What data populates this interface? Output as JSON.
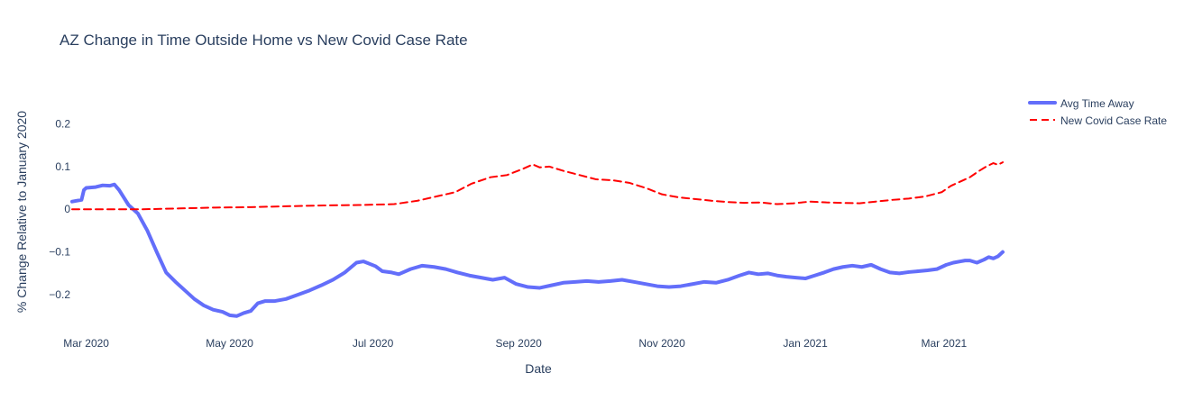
{
  "chart_data": {
    "type": "line",
    "title": "AZ Change in Time Outside Home vs New Covid Case Rate",
    "xlabel": "Date",
    "ylabel": "% Change Relative to January 2020",
    "x_range": [
      "2020-02-24",
      "2021-03-26"
    ],
    "ylim": [
      -0.28,
      0.3
    ],
    "grid": false,
    "legend_position": "top-right",
    "x_ticks": [
      {
        "date": "2020-03-01",
        "label": "Mar 2020"
      },
      {
        "date": "2020-05-01",
        "label": "May 2020"
      },
      {
        "date": "2020-07-01",
        "label": "Jul 2020"
      },
      {
        "date": "2020-09-01",
        "label": "Sep 2020"
      },
      {
        "date": "2020-11-01",
        "label": "Nov 2020"
      },
      {
        "date": "2021-01-01",
        "label": "Jan 2021"
      },
      {
        "date": "2021-03-01",
        "label": "Mar 2021"
      }
    ],
    "y_ticks": [
      {
        "value": 0.2,
        "label": "0.2"
      },
      {
        "value": 0.1,
        "label": "0.1"
      },
      {
        "value": 0,
        "label": "0"
      },
      {
        "value": -0.1,
        "label": "−0.1"
      },
      {
        "value": -0.2,
        "label": "−0.2"
      }
    ],
    "series": [
      {
        "name": "Avg Time Away",
        "color": "#636efa",
        "style": "solid",
        "points": [
          [
            "2020-02-24",
            0.018
          ],
          [
            "2020-02-28",
            0.022
          ],
          [
            "2020-02-29",
            0.045
          ],
          [
            "2020-03-01",
            0.05
          ],
          [
            "2020-03-05",
            0.052
          ],
          [
            "2020-03-08",
            0.056
          ],
          [
            "2020-03-11",
            0.055
          ],
          [
            "2020-03-13",
            0.058
          ],
          [
            "2020-03-15",
            0.045
          ],
          [
            "2020-03-19",
            0.01
          ],
          [
            "2020-03-23",
            -0.01
          ],
          [
            "2020-03-27",
            -0.05
          ],
          [
            "2020-03-31",
            -0.1
          ],
          [
            "2020-04-04",
            -0.148
          ],
          [
            "2020-04-08",
            -0.17
          ],
          [
            "2020-04-12",
            -0.19
          ],
          [
            "2020-04-16",
            -0.21
          ],
          [
            "2020-04-20",
            -0.225
          ],
          [
            "2020-04-24",
            -0.235
          ],
          [
            "2020-04-28",
            -0.24
          ],
          [
            "2020-05-01",
            -0.248
          ],
          [
            "2020-05-04",
            -0.25
          ],
          [
            "2020-05-07",
            -0.243
          ],
          [
            "2020-05-10",
            -0.238
          ],
          [
            "2020-05-13",
            -0.22
          ],
          [
            "2020-05-16",
            -0.215
          ],
          [
            "2020-05-20",
            -0.215
          ],
          [
            "2020-05-25",
            -0.21
          ],
          [
            "2020-05-30",
            -0.2
          ],
          [
            "2020-06-04",
            -0.19
          ],
          [
            "2020-06-09",
            -0.178
          ],
          [
            "2020-06-14",
            -0.165
          ],
          [
            "2020-06-19",
            -0.148
          ],
          [
            "2020-06-24",
            -0.125
          ],
          [
            "2020-06-27",
            -0.122
          ],
          [
            "2020-07-02",
            -0.133
          ],
          [
            "2020-07-05",
            -0.145
          ],
          [
            "2020-07-09",
            -0.148
          ],
          [
            "2020-07-12",
            -0.152
          ],
          [
            "2020-07-17",
            -0.14
          ],
          [
            "2020-07-22",
            -0.132
          ],
          [
            "2020-07-27",
            -0.135
          ],
          [
            "2020-08-01",
            -0.14
          ],
          [
            "2020-08-06",
            -0.148
          ],
          [
            "2020-08-11",
            -0.155
          ],
          [
            "2020-08-16",
            -0.16
          ],
          [
            "2020-08-21",
            -0.165
          ],
          [
            "2020-08-26",
            -0.16
          ],
          [
            "2020-08-31",
            -0.175
          ],
          [
            "2020-09-05",
            -0.182
          ],
          [
            "2020-09-10",
            -0.184
          ],
          [
            "2020-09-15",
            -0.178
          ],
          [
            "2020-09-20",
            -0.172
          ],
          [
            "2020-09-25",
            -0.17
          ],
          [
            "2020-09-30",
            -0.168
          ],
          [
            "2020-10-05",
            -0.17
          ],
          [
            "2020-10-10",
            -0.168
          ],
          [
            "2020-10-15",
            -0.165
          ],
          [
            "2020-10-20",
            -0.17
          ],
          [
            "2020-10-25",
            -0.175
          ],
          [
            "2020-10-30",
            -0.18
          ],
          [
            "2020-11-04",
            -0.182
          ],
          [
            "2020-11-09",
            -0.18
          ],
          [
            "2020-11-14",
            -0.175
          ],
          [
            "2020-11-19",
            -0.17
          ],
          [
            "2020-11-24",
            -0.172
          ],
          [
            "2020-11-29",
            -0.165
          ],
          [
            "2020-12-04",
            -0.155
          ],
          [
            "2020-12-08",
            -0.148
          ],
          [
            "2020-12-12",
            -0.152
          ],
          [
            "2020-12-16",
            -0.15
          ],
          [
            "2020-12-20",
            -0.155
          ],
          [
            "2020-12-24",
            -0.158
          ],
          [
            "2020-12-28",
            -0.16
          ],
          [
            "2021-01-01",
            -0.162
          ],
          [
            "2021-01-05",
            -0.155
          ],
          [
            "2021-01-09",
            -0.148
          ],
          [
            "2021-01-13",
            -0.14
          ],
          [
            "2021-01-17",
            -0.135
          ],
          [
            "2021-01-21",
            -0.132
          ],
          [
            "2021-01-25",
            -0.135
          ],
          [
            "2021-01-29",
            -0.13
          ],
          [
            "2021-02-02",
            -0.14
          ],
          [
            "2021-02-06",
            -0.148
          ],
          [
            "2021-02-10",
            -0.15
          ],
          [
            "2021-02-14",
            -0.147
          ],
          [
            "2021-02-18",
            -0.145
          ],
          [
            "2021-02-22",
            -0.143
          ],
          [
            "2021-02-26",
            -0.14
          ],
          [
            "2021-03-02",
            -0.13
          ],
          [
            "2021-03-05",
            -0.125
          ],
          [
            "2021-03-08",
            -0.122
          ],
          [
            "2021-03-10",
            -0.12
          ],
          [
            "2021-03-12",
            -0.12
          ],
          [
            "2021-03-15",
            -0.125
          ],
          [
            "2021-03-18",
            -0.118
          ],
          [
            "2021-03-20",
            -0.112
          ],
          [
            "2021-03-22",
            -0.115
          ],
          [
            "2021-03-24",
            -0.11
          ],
          [
            "2021-03-26",
            -0.1
          ]
        ]
      },
      {
        "name": "New Covid Case Rate",
        "color": "#ff0000",
        "style": "dashed",
        "points": [
          [
            "2020-02-24",
            0.0
          ],
          [
            "2020-03-10",
            0.0
          ],
          [
            "2020-03-25",
            0.0
          ],
          [
            "2020-04-10",
            0.002
          ],
          [
            "2020-04-25",
            0.004
          ],
          [
            "2020-05-10",
            0.005
          ],
          [
            "2020-05-25",
            0.007
          ],
          [
            "2020-06-10",
            0.009
          ],
          [
            "2020-06-25",
            0.01
          ],
          [
            "2020-07-10",
            0.012
          ],
          [
            "2020-07-20",
            0.02
          ],
          [
            "2020-07-28",
            0.03
          ],
          [
            "2020-08-05",
            0.04
          ],
          [
            "2020-08-12",
            0.06
          ],
          [
            "2020-08-20",
            0.075
          ],
          [
            "2020-08-27",
            0.08
          ],
          [
            "2020-09-03",
            0.095
          ],
          [
            "2020-09-07",
            0.105
          ],
          [
            "2020-09-10",
            0.098
          ],
          [
            "2020-09-14",
            0.1
          ],
          [
            "2020-09-20",
            0.09
          ],
          [
            "2020-09-27",
            0.08
          ],
          [
            "2020-10-04",
            0.07
          ],
          [
            "2020-10-11",
            0.068
          ],
          [
            "2020-10-18",
            0.062
          ],
          [
            "2020-10-25",
            0.05
          ],
          [
            "2020-11-01",
            0.035
          ],
          [
            "2020-11-08",
            0.028
          ],
          [
            "2020-11-15",
            0.024
          ],
          [
            "2020-11-22",
            0.02
          ],
          [
            "2020-11-29",
            0.017
          ],
          [
            "2020-12-06",
            0.015
          ],
          [
            "2020-12-13",
            0.016
          ],
          [
            "2020-12-20",
            0.012
          ],
          [
            "2020-12-27",
            0.014
          ],
          [
            "2021-01-03",
            0.018
          ],
          [
            "2021-01-10",
            0.016
          ],
          [
            "2021-01-17",
            0.015
          ],
          [
            "2021-01-24",
            0.014
          ],
          [
            "2021-01-31",
            0.018
          ],
          [
            "2021-02-07",
            0.022
          ],
          [
            "2021-02-14",
            0.025
          ],
          [
            "2021-02-21",
            0.03
          ],
          [
            "2021-02-28",
            0.04
          ],
          [
            "2021-03-04",
            0.055
          ],
          [
            "2021-03-08",
            0.065
          ],
          [
            "2021-03-12",
            0.075
          ],
          [
            "2021-03-16",
            0.09
          ],
          [
            "2021-03-19",
            0.1
          ],
          [
            "2021-03-22",
            0.108
          ],
          [
            "2021-03-24",
            0.104
          ],
          [
            "2021-03-26",
            0.11
          ]
        ]
      }
    ]
  }
}
